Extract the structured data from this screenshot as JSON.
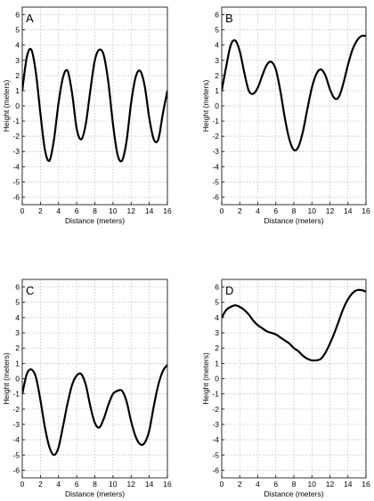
{
  "chart_data": [
    {
      "type": "line",
      "panel_label": "A",
      "xlabel": "Distance (meters)",
      "ylabel": "Height (meters)",
      "xlim": [
        0,
        16
      ],
      "ylim": [
        -6.5,
        6.5
      ],
      "xticks": [
        0,
        2,
        4,
        6,
        8,
        10,
        12,
        14,
        16
      ],
      "yticks": [
        -6,
        -5,
        -4,
        -3,
        -2,
        -1,
        0,
        1,
        2,
        3,
        4,
        5,
        6
      ],
      "grid": true,
      "x": [
        0,
        0.5,
        1,
        1.5,
        2,
        2.5,
        3,
        3.5,
        4,
        4.5,
        5,
        5.5,
        6,
        6.5,
        7,
        7.5,
        8,
        8.5,
        9,
        9.5,
        10,
        10.5,
        11,
        11.5,
        12,
        12.5,
        13,
        13.5,
        14,
        14.5,
        15,
        15.5,
        16
      ],
      "y": [
        1.0,
        3.2,
        3.7,
        2.2,
        -0.5,
        -2.9,
        -3.6,
        -2.2,
        0.2,
        1.9,
        2.3,
        0.8,
        -1.5,
        -2.2,
        -1.2,
        1.0,
        3.0,
        3.7,
        3.3,
        1.5,
        -1.2,
        -3.2,
        -3.6,
        -2.3,
        0.2,
        1.9,
        2.3,
        1.3,
        -0.8,
        -2.2,
        -2.2,
        -0.5,
        1.0
      ]
    },
    {
      "type": "line",
      "panel_label": "B",
      "xlabel": "Distance (meters)",
      "ylabel": "Height (meters)",
      "xlim": [
        0,
        16
      ],
      "ylim": [
        -6.5,
        6.5
      ],
      "xticks": [
        0,
        2,
        4,
        6,
        8,
        10,
        12,
        14,
        16
      ],
      "yticks": [
        -6,
        -5,
        -4,
        -3,
        -2,
        -1,
        0,
        1,
        2,
        3,
        4,
        5,
        6
      ],
      "grid": true,
      "x": [
        0,
        0.5,
        1,
        1.5,
        2,
        2.5,
        3,
        3.5,
        4,
        4.5,
        5,
        5.5,
        6,
        6.5,
        7,
        7.5,
        8,
        8.5,
        9,
        9.5,
        10,
        10.5,
        11,
        11.5,
        12,
        12.5,
        13,
        13.5,
        14,
        14.5,
        15,
        15.5,
        16
      ],
      "y": [
        1.0,
        2.6,
        4.0,
        4.3,
        3.6,
        2.2,
        1.0,
        0.8,
        1.2,
        2.0,
        2.7,
        2.9,
        2.4,
        1.0,
        -0.8,
        -2.2,
        -2.9,
        -2.7,
        -1.7,
        -0.2,
        1.2,
        2.1,
        2.4,
        2.0,
        1.1,
        0.5,
        0.6,
        1.5,
        2.7,
        3.7,
        4.3,
        4.6,
        4.6
      ]
    },
    {
      "type": "line",
      "panel_label": "C",
      "xlabel": "Distance (meters)",
      "ylabel": "Height (meters)",
      "xlim": [
        0,
        16
      ],
      "ylim": [
        -6.5,
        6.5
      ],
      "xticks": [
        0,
        2,
        4,
        6,
        8,
        10,
        12,
        14,
        16
      ],
      "yticks": [
        -6,
        -5,
        -4,
        -3,
        -2,
        -1,
        0,
        1,
        2,
        3,
        4,
        5,
        6
      ],
      "grid": true,
      "x": [
        0,
        0.5,
        1,
        1.5,
        2,
        2.5,
        3,
        3.5,
        4,
        4.5,
        5,
        5.5,
        6,
        6.5,
        7,
        7.5,
        8,
        8.5,
        9,
        9.5,
        10,
        10.5,
        11,
        11.5,
        12,
        12.5,
        13,
        13.5,
        14,
        14.5,
        15,
        15.5,
        16
      ],
      "y": [
        -1.0,
        0.3,
        0.6,
        0.1,
        -1.4,
        -3.2,
        -4.5,
        -5.0,
        -4.5,
        -3.1,
        -1.6,
        -0.4,
        0.2,
        0.3,
        -0.4,
        -1.8,
        -2.9,
        -3.2,
        -2.6,
        -1.7,
        -1.0,
        -0.8,
        -0.8,
        -1.5,
        -2.8,
        -3.8,
        -4.3,
        -4.2,
        -3.4,
        -1.8,
        -0.4,
        0.5,
        0.9
      ]
    },
    {
      "type": "line",
      "panel_label": "D",
      "xlabel": "Distance (meters)",
      "ylabel": "Height (meters)",
      "xlim": [
        0,
        16
      ],
      "ylim": [
        -6.5,
        6.5
      ],
      "xticks": [
        0,
        2,
        4,
        6,
        8,
        10,
        12,
        14,
        16
      ],
      "yticks": [
        -6,
        -5,
        -4,
        -3,
        -2,
        -1,
        0,
        1,
        2,
        3,
        4,
        5,
        6
      ],
      "grid": true,
      "x": [
        0,
        0.5,
        1,
        1.5,
        2,
        2.5,
        3,
        3.5,
        4,
        4.5,
        5,
        5.5,
        6,
        6.5,
        7,
        7.5,
        8,
        8.5,
        9,
        9.5,
        10,
        10.5,
        11,
        11.5,
        12,
        12.5,
        13,
        13.5,
        14,
        14.5,
        15,
        15.5,
        16
      ],
      "y": [
        4.0,
        4.5,
        4.7,
        4.8,
        4.7,
        4.5,
        4.2,
        3.8,
        3.5,
        3.3,
        3.1,
        3.0,
        2.9,
        2.7,
        2.5,
        2.3,
        2.0,
        1.8,
        1.5,
        1.3,
        1.2,
        1.2,
        1.3,
        1.7,
        2.3,
        3.0,
        3.8,
        4.6,
        5.2,
        5.6,
        5.8,
        5.8,
        5.7
      ]
    }
  ]
}
